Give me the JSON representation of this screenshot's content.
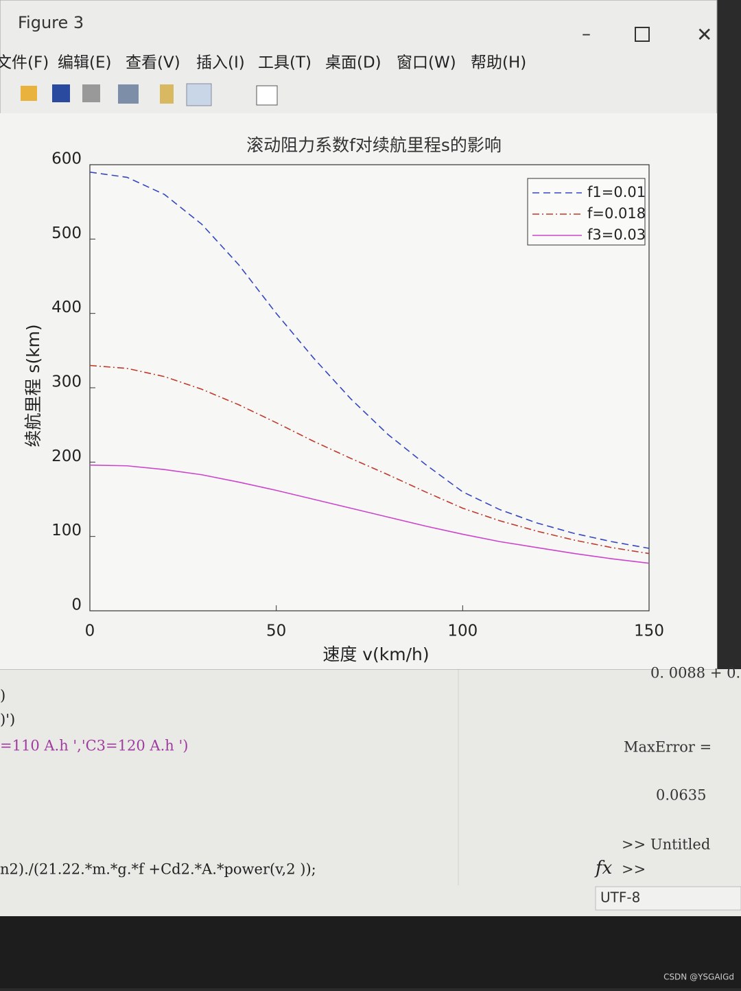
{
  "window": {
    "title": "Figure 3",
    "menu": [
      "文件(F)",
      "编辑(E)",
      "查看(V)",
      "插入(I)",
      "工具(T)",
      "桌面(D)",
      "窗口(W)",
      "帮助(H)"
    ]
  },
  "chart_data": {
    "type": "line",
    "title": "滚动阻力系数f对续航里程s的影响",
    "xlabel": "速度 v(km/h)",
    "ylabel": "续航里程 s(km)",
    "x": [
      0,
      10,
      20,
      30,
      40,
      50,
      60,
      70,
      80,
      90,
      100,
      110,
      120,
      130,
      140,
      150
    ],
    "series": [
      {
        "name": "f1=0.01",
        "color": "#3446c0",
        "dash": "dashed",
        "values": [
          590,
          583,
          560,
          520,
          465,
          400,
          340,
          285,
          237,
          197,
          160,
          136,
          118,
          104,
          93,
          84
        ]
      },
      {
        "name": "f=0.018",
        "color": "#c0392b",
        "dash": "dashdot",
        "values": [
          330,
          326,
          315,
          298,
          277,
          253,
          228,
          205,
          183,
          160,
          138,
          121,
          107,
          95,
          85,
          77
        ]
      },
      {
        "name": "f3=0.03",
        "color": "#cc44cc",
        "dash": "solid",
        "values": [
          196,
          195,
          190,
          183,
          173,
          162,
          150,
          138,
          126,
          114,
          103,
          93,
          85,
          77,
          70,
          64
        ]
      }
    ],
    "xlim": [
      0,
      150
    ],
    "xticks": [
      0,
      50,
      100,
      150
    ],
    "ylim": [
      0,
      600
    ],
    "yticks": [
      0,
      100,
      200,
      300,
      400,
      500,
      600
    ],
    "legend": "upper right"
  },
  "editor": {
    "lines": [
      ")",
      ")')",
      "=110 A.h ','C3=120 A.h ')",
      "n2)./(21.22.*m.*g.*f +Cd2.*A.*power(v,2 ));"
    ]
  },
  "command": {
    "lines": [
      "0. 0088 + 0.",
      "MaxError =",
      "0.0635",
      ">> Untitled",
      ">>"
    ],
    "fx": "fx",
    "encoding": "UTF-8"
  },
  "watermark": "CSDN @YSGAIGd"
}
